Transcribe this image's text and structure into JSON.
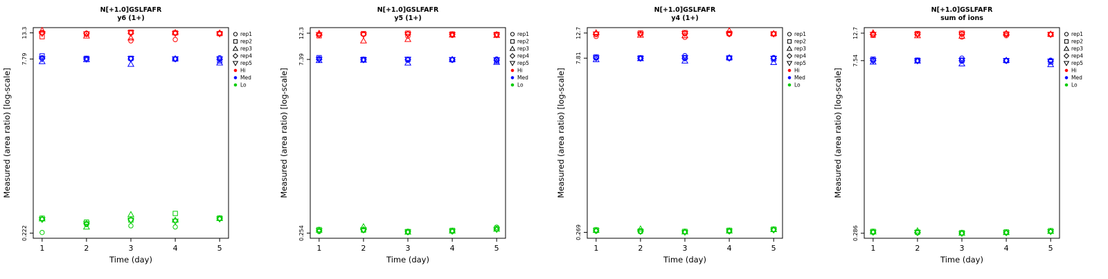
{
  "figure": {
    "background": "#ffffff",
    "xlabel": "Time (day)",
    "ylabel": "Measured (area ratio) [log-scale]"
  },
  "legend": {
    "reps": [
      {
        "label": "rep1",
        "marker": "circle"
      },
      {
        "label": "rep2",
        "marker": "square"
      },
      {
        "label": "rep3",
        "marker": "triangle-up"
      },
      {
        "label": "rep4",
        "marker": "diamond"
      },
      {
        "label": "rep5",
        "marker": "triangle-down"
      }
    ],
    "groups": [
      {
        "label": "Hi",
        "color": "#FF0000"
      },
      {
        "label": "Med",
        "color": "#0000FF"
      },
      {
        "label": "Lo",
        "color": "#00CC00"
      }
    ]
  },
  "chart_data": [
    {
      "type": "scatter",
      "title": "N[+1.0]GSLFAFR",
      "subtitle": "y6 (1+)",
      "xlabel": "Time (day)",
      "ylabel": "Measured (area ratio) [log-scale]",
      "x": [
        1,
        2,
        3,
        4,
        5
      ],
      "x_ticks": [
        "1",
        "2",
        "3",
        "4",
        "5"
      ],
      "xlim": [
        0.8,
        5.2
      ],
      "y_scale": "log",
      "ylim": [
        0.2,
        14.8
      ],
      "y_ticks": [
        0.222,
        7.79,
        13.3
      ],
      "y_tick_labels": [
        "0.222",
        "7.79",
        "13.3"
      ],
      "series": [
        {
          "name": "Hi",
          "color": "#FF0000",
          "reps": [
            {
              "rep": "rep1",
              "marker": "circle",
              "values": [
                13.4,
                13.2,
                11.3,
                11.6,
                13.2
              ]
            },
            {
              "rep": "rep2",
              "marker": "square",
              "values": [
                12.3,
                13.0,
                13.5,
                13.3,
                13.1
              ]
            },
            {
              "rep": "rep3",
              "marker": "triangle-up",
              "values": [
                14.0,
                12.5,
                12.0,
                13.4,
                13.3
              ]
            },
            {
              "rep": "rep4",
              "marker": "diamond",
              "values": [
                13.2,
                13.1,
                13.2,
                13.2,
                13.2
              ]
            },
            {
              "rep": "rep5",
              "marker": "triangle-down",
              "values": [
                13.1,
                13.0,
                13.3,
                13.1,
                13.0
              ]
            }
          ]
        },
        {
          "name": "Med",
          "color": "#0000FF",
          "reps": [
            {
              "rep": "rep1",
              "marker": "circle",
              "values": [
                8.0,
                7.85,
                7.8,
                7.75,
                8.0
              ]
            },
            {
              "rep": "rep2",
              "marker": "square",
              "values": [
                8.3,
                7.9,
                7.9,
                7.8,
                7.5
              ]
            },
            {
              "rep": "rep3",
              "marker": "triangle-up",
              "values": [
                7.4,
                7.7,
                7.0,
                7.85,
                7.2
              ]
            },
            {
              "rep": "rep4",
              "marker": "diamond",
              "values": [
                7.85,
                7.8,
                7.8,
                7.8,
                7.75
              ]
            },
            {
              "rep": "rep5",
              "marker": "triangle-down",
              "values": [
                7.8,
                7.75,
                7.85,
                7.8,
                7.8
              ]
            }
          ]
        },
        {
          "name": "Lo",
          "color": "#00CC00",
          "reps": [
            {
              "rep": "rep1",
              "marker": "circle",
              "values": [
                0.225,
                0.265,
                0.258,
                0.252,
                0.3
              ]
            },
            {
              "rep": "rep2",
              "marker": "square",
              "values": [
                0.301,
                0.278,
                0.29,
                0.332,
                0.302
              ]
            },
            {
              "rep": "rep3",
              "marker": "triangle-up",
              "values": [
                0.298,
                0.252,
                0.325,
                0.29,
                0.3
              ]
            },
            {
              "rep": "rep4",
              "marker": "diamond",
              "values": [
                0.295,
                0.27,
                0.292,
                0.285,
                0.298
              ]
            },
            {
              "rep": "rep5",
              "marker": "triangle-down",
              "values": [
                0.293,
                0.268,
                0.288,
                0.283,
                0.296
              ]
            }
          ]
        }
      ]
    },
    {
      "type": "scatter",
      "title": "N[+1.0]GSLFAFR",
      "subtitle": "y5 (1+)",
      "xlabel": "Time (day)",
      "ylabel": "Measured (area ratio) [log-scale]",
      "x": [
        1,
        2,
        3,
        4,
        5
      ],
      "x_ticks": [
        "1",
        "2",
        "3",
        "4",
        "5"
      ],
      "xlim": [
        0.8,
        5.2
      ],
      "y_scale": "log",
      "ylim": [
        0.23,
        13.7
      ],
      "y_ticks": [
        0.254,
        7.39,
        12.3
      ],
      "y_tick_labels": [
        "0.254",
        "7.39",
        "12.3"
      ],
      "series": [
        {
          "name": "Hi",
          "color": "#FF0000",
          "reps": [
            {
              "rep": "rep1",
              "marker": "circle",
              "values": [
                11.9,
                12.1,
                11.6,
                11.8,
                12.0
              ]
            },
            {
              "rep": "rep2",
              "marker": "square",
              "values": [
                11.7,
                12.2,
                12.3,
                12.1,
                12.0
              ]
            },
            {
              "rep": "rep3",
              "marker": "triangle-up",
              "values": [
                12.3,
                10.6,
                10.9,
                11.9,
                11.8
              ]
            },
            {
              "rep": "rep4",
              "marker": "diamond",
              "values": [
                12.0,
                12.0,
                12.1,
                12.0,
                12.0
              ]
            },
            {
              "rep": "rep5",
              "marker": "triangle-down",
              "values": [
                11.95,
                11.9,
                12.05,
                11.95,
                11.9
              ]
            }
          ]
        },
        {
          "name": "Med",
          "color": "#0000FF",
          "reps": [
            {
              "rep": "rep1",
              "marker": "circle",
              "values": [
                7.5,
                7.35,
                7.3,
                7.3,
                7.45
              ]
            },
            {
              "rep": "rep2",
              "marker": "square",
              "values": [
                7.65,
                7.4,
                7.4,
                7.35,
                7.15
              ]
            },
            {
              "rep": "rep3",
              "marker": "triangle-up",
              "values": [
                7.25,
                7.3,
                6.9,
                7.4,
                7.0
              ]
            },
            {
              "rep": "rep4",
              "marker": "diamond",
              "values": [
                7.4,
                7.35,
                7.35,
                7.35,
                7.3
              ]
            },
            {
              "rep": "rep5",
              "marker": "triangle-down",
              "values": [
                7.38,
                7.33,
                7.4,
                7.36,
                7.32
              ]
            }
          ]
        },
        {
          "name": "Lo",
          "color": "#00CC00",
          "reps": [
            {
              "rep": "rep1",
              "marker": "circle",
              "values": [
                0.262,
                0.268,
                0.258,
                0.262,
                0.285
              ]
            },
            {
              "rep": "rep2",
              "marker": "square",
              "values": [
                0.272,
                0.27,
                0.262,
                0.268,
                0.278
              ]
            },
            {
              "rep": "rep3",
              "marker": "triangle-up",
              "values": [
                0.27,
                0.288,
                0.26,
                0.265,
                0.275
              ]
            },
            {
              "rep": "rep4",
              "marker": "diamond",
              "values": [
                0.268,
                0.272,
                0.261,
                0.264,
                0.274
              ]
            },
            {
              "rep": "rep5",
              "marker": "triangle-down",
              "values": [
                0.266,
                0.27,
                0.259,
                0.263,
                0.272
              ]
            }
          ]
        }
      ]
    },
    {
      "type": "scatter",
      "title": "N[+1.0]GSLFAFR",
      "subtitle": "y4 (1+)",
      "xlabel": "Time (day)",
      "ylabel": "Measured (area ratio) [log-scale]",
      "x": [
        1,
        2,
        3,
        4,
        5
      ],
      "x_ticks": [
        "1",
        "2",
        "3",
        "4",
        "5"
      ],
      "xlim": [
        0.8,
        5.2
      ],
      "y_scale": "log",
      "ylim": [
        0.24,
        14.1
      ],
      "y_ticks": [
        0.269,
        7.81,
        12.7
      ],
      "y_tick_labels": [
        "0.269",
        "7.81",
        "12.7"
      ],
      "series": [
        {
          "name": "Hi",
          "color": "#FF0000",
          "reps": [
            {
              "rep": "rep1",
              "marker": "circle",
              "values": [
                11.9,
                12.5,
                11.7,
                12.4,
                12.5
              ]
            },
            {
              "rep": "rep2",
              "marker": "square",
              "values": [
                12.4,
                12.7,
                12.8,
                12.6,
                12.5
              ]
            },
            {
              "rep": "rep3",
              "marker": "triangle-up",
              "values": [
                12.8,
                12.2,
                12.1,
                13.3,
                12.6
              ]
            },
            {
              "rep": "rep4",
              "marker": "diamond",
              "values": [
                12.5,
                12.5,
                12.6,
                12.5,
                12.5
              ]
            },
            {
              "rep": "rep5",
              "marker": "triangle-down",
              "values": [
                12.45,
                12.4,
                12.55,
                12.5,
                12.45
              ]
            }
          ]
        },
        {
          "name": "Med",
          "color": "#0000FF",
          "reps": [
            {
              "rep": "rep1",
              "marker": "circle",
              "values": [
                7.9,
                7.8,
                8.2,
                7.8,
                7.9
              ]
            },
            {
              "rep": "rep2",
              "marker": "square",
              "values": [
                8.0,
                7.85,
                7.9,
                7.85,
                7.7
              ]
            },
            {
              "rep": "rep3",
              "marker": "triangle-up",
              "values": [
                7.6,
                7.75,
                7.4,
                7.9,
                7.2
              ]
            },
            {
              "rep": "rep4",
              "marker": "diamond",
              "values": [
                7.85,
                7.8,
                7.8,
                7.82,
                7.75
              ]
            },
            {
              "rep": "rep5",
              "marker": "triangle-down",
              "values": [
                7.82,
                7.78,
                7.85,
                7.8,
                7.78
              ]
            }
          ]
        },
        {
          "name": "Lo",
          "color": "#00CC00",
          "reps": [
            {
              "rep": "rep1",
              "marker": "circle",
              "values": [
                0.276,
                0.272,
                0.27,
                0.274,
                0.282
              ]
            },
            {
              "rep": "rep2",
              "marker": "square",
              "values": [
                0.282,
                0.276,
                0.274,
                0.28,
                0.286
              ]
            },
            {
              "rep": "rep3",
              "marker": "triangle-up",
              "values": [
                0.28,
                0.288,
                0.272,
                0.277,
                0.284
              ]
            },
            {
              "rep": "rep4",
              "marker": "diamond",
              "values": [
                0.278,
                0.275,
                0.271,
                0.276,
                0.283
              ]
            },
            {
              "rep": "rep5",
              "marker": "triangle-down",
              "values": [
                0.277,
                0.273,
                0.269,
                0.275,
                0.281
              ]
            }
          ]
        }
      ]
    },
    {
      "type": "scatter",
      "title": "N[+1.0]GSLFAFR",
      "subtitle": "sum of ions",
      "xlabel": "Time (day)",
      "ylabel": "Measured (area ratio) [log-scale]",
      "x": [
        1,
        2,
        3,
        4,
        5
      ],
      "x_ticks": [
        "1",
        "2",
        "3",
        "4",
        "5"
      ],
      "xlim": [
        0.8,
        5.2
      ],
      "y_scale": "log",
      "ylim": [
        0.26,
        14.1
      ],
      "y_ticks": [
        0.286,
        7.54,
        12.7
      ],
      "y_tick_labels": [
        "0.286",
        "7.54",
        "12.7"
      ],
      "series": [
        {
          "name": "Hi",
          "color": "#FF0000",
          "reps": [
            {
              "rep": "rep1",
              "marker": "circle",
              "values": [
                12.3,
                12.5,
                11.8,
                12.1,
                12.4
              ]
            },
            {
              "rep": "rep2",
              "marker": "square",
              "values": [
                12.2,
                12.6,
                12.7,
                12.5,
                12.4
              ]
            },
            {
              "rep": "rep3",
              "marker": "triangle-up",
              "values": [
                12.8,
                12.1,
                12.0,
                12.7,
                12.5
              ]
            },
            {
              "rep": "rep4",
              "marker": "diamond",
              "values": [
                12.45,
                12.4,
                12.5,
                12.45,
                12.4
              ]
            },
            {
              "rep": "rep5",
              "marker": "triangle-down",
              "values": [
                12.4,
                12.35,
                12.45,
                12.4,
                12.35
              ]
            }
          ]
        },
        {
          "name": "Med",
          "color": "#0000FF",
          "reps": [
            {
              "rep": "rep1",
              "marker": "circle",
              "values": [
                7.65,
                7.55,
                7.9,
                7.5,
                7.6
              ]
            },
            {
              "rep": "rep2",
              "marker": "square",
              "values": [
                7.75,
                7.6,
                7.6,
                7.55,
                7.35
              ]
            },
            {
              "rep": "rep3",
              "marker": "triangle-up",
              "values": [
                7.35,
                7.5,
                7.1,
                7.6,
                7.0
              ]
            },
            {
              "rep": "rep4",
              "marker": "diamond",
              "values": [
                7.55,
                7.52,
                7.53,
                7.54,
                7.48
              ]
            },
            {
              "rep": "rep5",
              "marker": "triangle-down",
              "values": [
                7.52,
                7.5,
                7.56,
                7.52,
                7.46
              ]
            }
          ]
        },
        {
          "name": "Lo",
          "color": "#00CC00",
          "reps": [
            {
              "rep": "rep1",
              "marker": "circle",
              "values": [
                0.29,
                0.288,
                0.285,
                0.288,
                0.295
              ]
            },
            {
              "rep": "rep2",
              "marker": "square",
              "values": [
                0.296,
                0.292,
                0.289,
                0.293,
                0.3
              ]
            },
            {
              "rep": "rep3",
              "marker": "triangle-up",
              "values": [
                0.294,
                0.3,
                0.287,
                0.29,
                0.297
              ]
            },
            {
              "rep": "rep4",
              "marker": "diamond",
              "values": [
                0.292,
                0.29,
                0.286,
                0.289,
                0.296
              ]
            },
            {
              "rep": "rep5",
              "marker": "triangle-down",
              "values": [
                0.291,
                0.289,
                0.284,
                0.288,
                0.294
              ]
            }
          ]
        }
      ]
    }
  ]
}
